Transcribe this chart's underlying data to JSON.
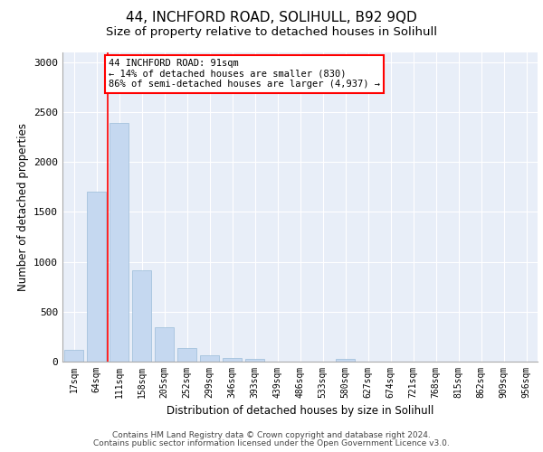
{
  "title1": "44, INCHFORD ROAD, SOLIHULL, B92 9QD",
  "title2": "Size of property relative to detached houses in Solihull",
  "xlabel": "Distribution of detached houses by size in Solihull",
  "ylabel": "Number of detached properties",
  "categories": [
    "17sqm",
    "64sqm",
    "111sqm",
    "158sqm",
    "205sqm",
    "252sqm",
    "299sqm",
    "346sqm",
    "393sqm",
    "439sqm",
    "486sqm",
    "533sqm",
    "580sqm",
    "627sqm",
    "674sqm",
    "721sqm",
    "768sqm",
    "815sqm",
    "862sqm",
    "909sqm",
    "956sqm"
  ],
  "values": [
    120,
    1700,
    2390,
    910,
    345,
    140,
    65,
    40,
    30,
    0,
    0,
    0,
    25,
    0,
    0,
    0,
    0,
    0,
    0,
    0,
    0
  ],
  "bar_color": "#c5d8f0",
  "bar_edge_color": "#9bbcd8",
  "annotation_box_text": "44 INCHFORD ROAD: 91sqm\n← 14% of detached houses are smaller (830)\n86% of semi-detached houses are larger (4,937) →",
  "annotation_box_facecolor": "white",
  "annotation_box_edgecolor": "red",
  "vline_x": 1.5,
  "vline_color": "red",
  "ylim": [
    0,
    3100
  ],
  "yticks": [
    0,
    500,
    1000,
    1500,
    2000,
    2500,
    3000
  ],
  "footer1": "Contains HM Land Registry data © Crown copyright and database right 2024.",
  "footer2": "Contains public sector information licensed under the Open Government Licence v3.0.",
  "bg_color": "#e8eef8",
  "grid_color": "white",
  "title1_fontsize": 11,
  "title2_fontsize": 9.5,
  "axis_label_fontsize": 8.5,
  "tick_fontsize": 7,
  "footer_fontsize": 6.5
}
